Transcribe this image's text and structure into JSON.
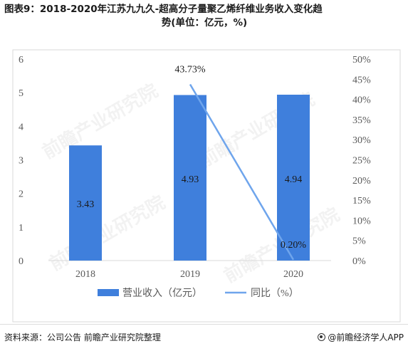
{
  "title_line1": "图表9：2018-2020年江苏九九久-超高分子量聚乙烯纤维业务收入变化趋",
  "title_line2": "势(单位：亿元，%)",
  "watermark": "前瞻产业研究院",
  "source": "资料来源：公司公告 前瞻产业研究院整理",
  "brand": "@前瞻经济学人APP",
  "colors": {
    "bar": "#3f7fdc",
    "line": "#6fa5ec",
    "axis_text": "#595959"
  },
  "chart_data": {
    "type": "bar",
    "categories": [
      "2018",
      "2019",
      "2020"
    ],
    "series": [
      {
        "name": "营业收入（亿元）",
        "type": "bar",
        "axis": "left",
        "values": [
          3.43,
          4.93,
          4.94
        ],
        "labels": [
          "3.43",
          "4.93",
          "4.94"
        ]
      },
      {
        "name": "同比（%）",
        "type": "line",
        "axis": "right",
        "values": [
          null,
          43.73,
          0.2
        ],
        "labels": [
          "",
          "43.73%",
          "0.20%"
        ]
      }
    ],
    "y_left": {
      "min": 0,
      "max": 6,
      "ticks": [
        "0",
        "1",
        "2",
        "3",
        "4",
        "5",
        "6"
      ]
    },
    "y_right": {
      "min": 0,
      "max": 50,
      "ticks": [
        "0%",
        "5%",
        "10%",
        "15%",
        "20%",
        "25%",
        "30%",
        "35%",
        "40%",
        "45%",
        "50%"
      ]
    },
    "legend_position": "bottom"
  }
}
